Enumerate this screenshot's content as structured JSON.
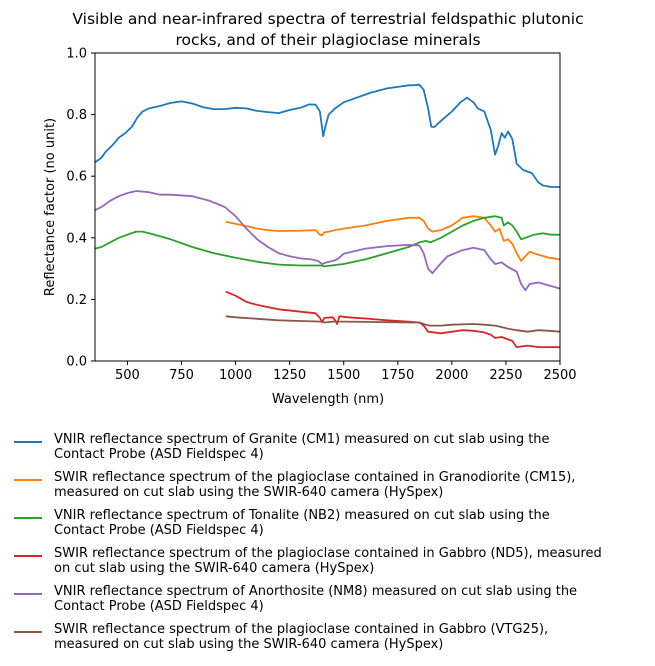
{
  "chart_data": {
    "type": "line",
    "title": "Visible and near-infrared spectra of terrestrial feldspathic plutonic rocks, and of their plagioclase minerals",
    "title_lines": [
      "Visible and near-infrared spectra of terrestrial feldspathic plutonic",
      "rocks, and of their plagioclase minerals"
    ],
    "xlabel": "Wavelength (nm)",
    "ylabel": "Reflectance factor (no unit)",
    "xlim": [
      350,
      2500
    ],
    "ylim": [
      0.0,
      1.0
    ],
    "xticks": [
      "500",
      "750",
      "1000",
      "1250",
      "1500",
      "1750",
      "2000",
      "2250",
      "2500"
    ],
    "yticks": [
      "0.0",
      "0.2",
      "0.4",
      "0.6",
      "0.8",
      "1.0"
    ],
    "grid": false,
    "legend_position": "below",
    "series": [
      {
        "name": "VNIR reflectance spectrum of Granite (CM1) measured on cut slab using the\nContact Probe (ASD Fieldspec 4)",
        "color": "#1f77b4",
        "points": [
          [
            350,
            0.645
          ],
          [
            360,
            0.65
          ],
          [
            380,
            0.66
          ],
          [
            400,
            0.68
          ],
          [
            430,
            0.7
          ],
          [
            460,
            0.725
          ],
          [
            490,
            0.74
          ],
          [
            520,
            0.76
          ],
          [
            545,
            0.79
          ],
          [
            570,
            0.81
          ],
          [
            600,
            0.82
          ],
          [
            650,
            0.828
          ],
          [
            700,
            0.838
          ],
          [
            750,
            0.843
          ],
          [
            800,
            0.836
          ],
          [
            850,
            0.824
          ],
          [
            900,
            0.818
          ],
          [
            950,
            0.818
          ],
          [
            1000,
            0.822
          ],
          [
            1050,
            0.82
          ],
          [
            1100,
            0.812
          ],
          [
            1150,
            0.808
          ],
          [
            1200,
            0.805
          ],
          [
            1250,
            0.815
          ],
          [
            1300,
            0.822
          ],
          [
            1340,
            0.833
          ],
          [
            1370,
            0.832
          ],
          [
            1390,
            0.81
          ],
          [
            1405,
            0.73
          ],
          [
            1415,
            0.76
          ],
          [
            1430,
            0.8
          ],
          [
            1460,
            0.82
          ],
          [
            1500,
            0.84
          ],
          [
            1560,
            0.855
          ],
          [
            1620,
            0.87
          ],
          [
            1700,
            0.885
          ],
          [
            1750,
            0.89
          ],
          [
            1800,
            0.895
          ],
          [
            1820,
            0.895
          ],
          [
            1850,
            0.897
          ],
          [
            1870,
            0.88
          ],
          [
            1890,
            0.82
          ],
          [
            1905,
            0.76
          ],
          [
            1920,
            0.76
          ],
          [
            1950,
            0.78
          ],
          [
            2000,
            0.81
          ],
          [
            2040,
            0.84
          ],
          [
            2070,
            0.855
          ],
          [
            2100,
            0.84
          ],
          [
            2120,
            0.82
          ],
          [
            2150,
            0.81
          ],
          [
            2180,
            0.75
          ],
          [
            2200,
            0.67
          ],
          [
            2215,
            0.7
          ],
          [
            2230,
            0.74
          ],
          [
            2245,
            0.725
          ],
          [
            2260,
            0.745
          ],
          [
            2280,
            0.72
          ],
          [
            2300,
            0.64
          ],
          [
            2330,
            0.62
          ],
          [
            2370,
            0.61
          ],
          [
            2400,
            0.58
          ],
          [
            2420,
            0.57
          ],
          [
            2460,
            0.565
          ],
          [
            2500,
            0.565
          ]
        ]
      },
      {
        "name": "SWIR reflectance spectrum of the plagioclase contained in Granodiorite (CM15),\nmeasured on cut slab using the SWIR-640 camera (HySpex)",
        "color": "#ff7f0e",
        "points": [
          [
            955,
            0.452
          ],
          [
            1000,
            0.445
          ],
          [
            1050,
            0.438
          ],
          [
            1100,
            0.43
          ],
          [
            1150,
            0.425
          ],
          [
            1200,
            0.422
          ],
          [
            1300,
            0.423
          ],
          [
            1370,
            0.425
          ],
          [
            1390,
            0.41
          ],
          [
            1400,
            0.408
          ],
          [
            1410,
            0.418
          ],
          [
            1430,
            0.42
          ],
          [
            1460,
            0.425
          ],
          [
            1500,
            0.43
          ],
          [
            1600,
            0.44
          ],
          [
            1700,
            0.455
          ],
          [
            1800,
            0.465
          ],
          [
            1850,
            0.465
          ],
          [
            1870,
            0.455
          ],
          [
            1890,
            0.43
          ],
          [
            1910,
            0.42
          ],
          [
            1950,
            0.425
          ],
          [
            2000,
            0.44
          ],
          [
            2050,
            0.465
          ],
          [
            2100,
            0.47
          ],
          [
            2150,
            0.465
          ],
          [
            2180,
            0.44
          ],
          [
            2200,
            0.42
          ],
          [
            2220,
            0.43
          ],
          [
            2240,
            0.39
          ],
          [
            2260,
            0.395
          ],
          [
            2280,
            0.38
          ],
          [
            2300,
            0.35
          ],
          [
            2320,
            0.325
          ],
          [
            2340,
            0.34
          ],
          [
            2360,
            0.355
          ],
          [
            2400,
            0.345
          ],
          [
            2450,
            0.335
          ],
          [
            2500,
            0.33
          ]
        ]
      },
      {
        "name": "VNIR reflectance spectrum of Tonalite (NB2) measured on cut slab using the\nContact Probe (ASD Fieldspec 4)",
        "color": "#2ca02c",
        "points": [
          [
            350,
            0.365
          ],
          [
            380,
            0.37
          ],
          [
            420,
            0.385
          ],
          [
            460,
            0.4
          ],
          [
            500,
            0.41
          ],
          [
            540,
            0.42
          ],
          [
            570,
            0.42
          ],
          [
            600,
            0.415
          ],
          [
            700,
            0.395
          ],
          [
            800,
            0.37
          ],
          [
            900,
            0.35
          ],
          [
            1000,
            0.335
          ],
          [
            1100,
            0.322
          ],
          [
            1200,
            0.313
          ],
          [
            1300,
            0.31
          ],
          [
            1400,
            0.31
          ],
          [
            1410,
            0.307
          ],
          [
            1500,
            0.315
          ],
          [
            1600,
            0.33
          ],
          [
            1700,
            0.35
          ],
          [
            1800,
            0.37
          ],
          [
            1850,
            0.385
          ],
          [
            1880,
            0.39
          ],
          [
            1900,
            0.385
          ],
          [
            1950,
            0.4
          ],
          [
            2000,
            0.42
          ],
          [
            2050,
            0.44
          ],
          [
            2100,
            0.455
          ],
          [
            2150,
            0.465
          ],
          [
            2200,
            0.47
          ],
          [
            2230,
            0.465
          ],
          [
            2240,
            0.44
          ],
          [
            2260,
            0.45
          ],
          [
            2280,
            0.44
          ],
          [
            2300,
            0.42
          ],
          [
            2320,
            0.395
          ],
          [
            2340,
            0.4
          ],
          [
            2380,
            0.41
          ],
          [
            2420,
            0.415
          ],
          [
            2460,
            0.41
          ],
          [
            2500,
            0.41
          ]
        ]
      },
      {
        "name": "SWIR reflectance spectrum of the plagioclase contained in Gabbro (ND5), measured\non cut slab using the SWIR-640 camera (HySpex)",
        "color": "#d62728",
        "points": [
          [
            955,
            0.225
          ],
          [
            1000,
            0.212
          ],
          [
            1050,
            0.192
          ],
          [
            1100,
            0.182
          ],
          [
            1150,
            0.175
          ],
          [
            1200,
            0.168
          ],
          [
            1300,
            0.16
          ],
          [
            1370,
            0.155
          ],
          [
            1390,
            0.14
          ],
          [
            1400,
            0.125
          ],
          [
            1410,
            0.14
          ],
          [
            1450,
            0.142
          ],
          [
            1460,
            0.132
          ],
          [
            1470,
            0.12
          ],
          [
            1480,
            0.145
          ],
          [
            1520,
            0.142
          ],
          [
            1600,
            0.138
          ],
          [
            1700,
            0.132
          ],
          [
            1800,
            0.128
          ],
          [
            1850,
            0.125
          ],
          [
            1870,
            0.115
          ],
          [
            1890,
            0.095
          ],
          [
            1950,
            0.09
          ],
          [
            2000,
            0.095
          ],
          [
            2050,
            0.1
          ],
          [
            2100,
            0.098
          ],
          [
            2150,
            0.093
          ],
          [
            2180,
            0.085
          ],
          [
            2200,
            0.075
          ],
          [
            2230,
            0.078
          ],
          [
            2260,
            0.07
          ],
          [
            2280,
            0.065
          ],
          [
            2300,
            0.045
          ],
          [
            2350,
            0.05
          ],
          [
            2400,
            0.045
          ],
          [
            2500,
            0.045
          ]
        ]
      },
      {
        "name": "VNIR reflectance spectrum of Anorthosite (NM8) measured on cut slab using the\nContact Probe (ASD Fieldspec 4)",
        "color": "#9467bd",
        "points": [
          [
            350,
            0.49
          ],
          [
            380,
            0.5
          ],
          [
            420,
            0.52
          ],
          [
            460,
            0.535
          ],
          [
            500,
            0.545
          ],
          [
            540,
            0.552
          ],
          [
            600,
            0.548
          ],
          [
            650,
            0.54
          ],
          [
            700,
            0.54
          ],
          [
            800,
            0.535
          ],
          [
            880,
            0.52
          ],
          [
            950,
            0.5
          ],
          [
            1000,
            0.47
          ],
          [
            1050,
            0.43
          ],
          [
            1100,
            0.395
          ],
          [
            1150,
            0.37
          ],
          [
            1200,
            0.35
          ],
          [
            1250,
            0.34
          ],
          [
            1300,
            0.333
          ],
          [
            1350,
            0.33
          ],
          [
            1380,
            0.325
          ],
          [
            1400,
            0.315
          ],
          [
            1420,
            0.32
          ],
          [
            1450,
            0.325
          ],
          [
            1470,
            0.33
          ],
          [
            1500,
            0.348
          ],
          [
            1600,
            0.365
          ],
          [
            1700,
            0.373
          ],
          [
            1800,
            0.377
          ],
          [
            1850,
            0.375
          ],
          [
            1870,
            0.35
          ],
          [
            1890,
            0.3
          ],
          [
            1910,
            0.285
          ],
          [
            1940,
            0.31
          ],
          [
            1980,
            0.34
          ],
          [
            2050,
            0.36
          ],
          [
            2100,
            0.368
          ],
          [
            2150,
            0.36
          ],
          [
            2180,
            0.33
          ],
          [
            2200,
            0.315
          ],
          [
            2230,
            0.32
          ],
          [
            2260,
            0.305
          ],
          [
            2300,
            0.29
          ],
          [
            2320,
            0.25
          ],
          [
            2340,
            0.23
          ],
          [
            2360,
            0.25
          ],
          [
            2400,
            0.255
          ],
          [
            2450,
            0.245
          ],
          [
            2500,
            0.235
          ]
        ]
      },
      {
        "name": "SWIR reflectance spectrum of the plagioclase contained in Gabbro (VTG25),\nmeasured on cut slab using the SWIR-640 camera (HySpex)",
        "color": "#8c564b",
        "points": [
          [
            955,
            0.145
          ],
          [
            1000,
            0.142
          ],
          [
            1100,
            0.137
          ],
          [
            1200,
            0.132
          ],
          [
            1300,
            0.13
          ],
          [
            1400,
            0.128
          ],
          [
            1410,
            0.125
          ],
          [
            1450,
            0.128
          ],
          [
            1500,
            0.128
          ],
          [
            1600,
            0.127
          ],
          [
            1700,
            0.126
          ],
          [
            1800,
            0.125
          ],
          [
            1850,
            0.125
          ],
          [
            1880,
            0.118
          ],
          [
            1900,
            0.115
          ],
          [
            1950,
            0.115
          ],
          [
            2000,
            0.118
          ],
          [
            2100,
            0.12
          ],
          [
            2150,
            0.118
          ],
          [
            2200,
            0.115
          ],
          [
            2230,
            0.11
          ],
          [
            2260,
            0.105
          ],
          [
            2300,
            0.1
          ],
          [
            2350,
            0.095
          ],
          [
            2400,
            0.1
          ],
          [
            2450,
            0.098
          ],
          [
            2500,
            0.095
          ]
        ]
      }
    ]
  }
}
